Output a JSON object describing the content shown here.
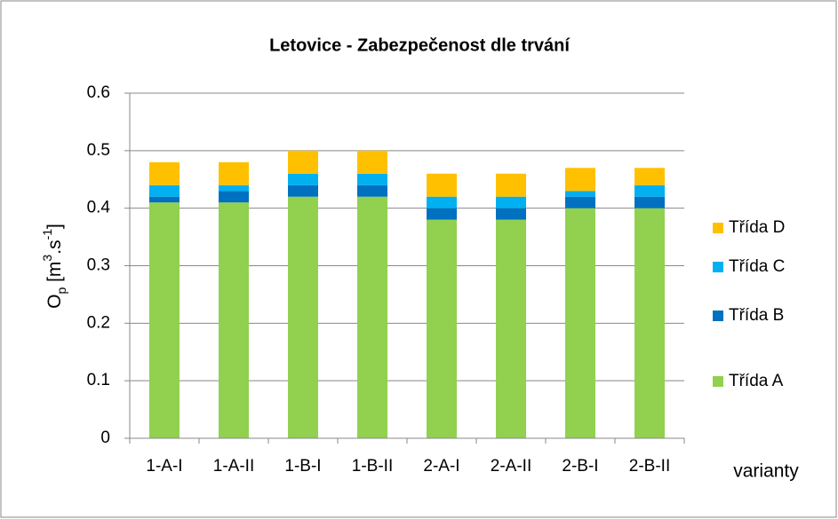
{
  "chart_data": {
    "type": "stacked_bar",
    "title": "Letovice - Zabezpečenost dle trvání",
    "y_label": {
      "symbol": "O",
      "subscript": "p",
      "unit_open": " [m",
      "unit_exp1": "3",
      "unit_mid": ".s",
      "unit_exp2": "-1",
      "unit_close": "]"
    },
    "x_label": "varianty",
    "categories": [
      "1-A-I",
      "1-A-II",
      "1-B-I",
      "1-B-II",
      "2-A-I",
      "2-A-II",
      "2-B-I",
      "2-B-II"
    ],
    "series": [
      {
        "name": "Třída A",
        "color": "#92d050",
        "values": [
          0.41,
          0.41,
          0.42,
          0.42,
          0.38,
          0.38,
          0.4,
          0.4
        ]
      },
      {
        "name": "Třída B",
        "color": "#0070c0",
        "values": [
          0.01,
          0.02,
          0.02,
          0.02,
          0.02,
          0.02,
          0.02,
          0.02
        ]
      },
      {
        "name": "Třída C",
        "color": "#00b0f0",
        "values": [
          0.02,
          0.01,
          0.02,
          0.02,
          0.02,
          0.02,
          0.01,
          0.02
        ]
      },
      {
        "name": "Třída D",
        "color": "#ffc000",
        "values": [
          0.04,
          0.04,
          0.04,
          0.04,
          0.04,
          0.04,
          0.04,
          0.03
        ]
      }
    ],
    "ylim": [
      0,
      0.6
    ],
    "yticks": [
      0,
      0.1,
      0.2,
      0.3,
      0.4,
      0.5,
      0.6
    ],
    "grid": true,
    "legend": "right"
  }
}
